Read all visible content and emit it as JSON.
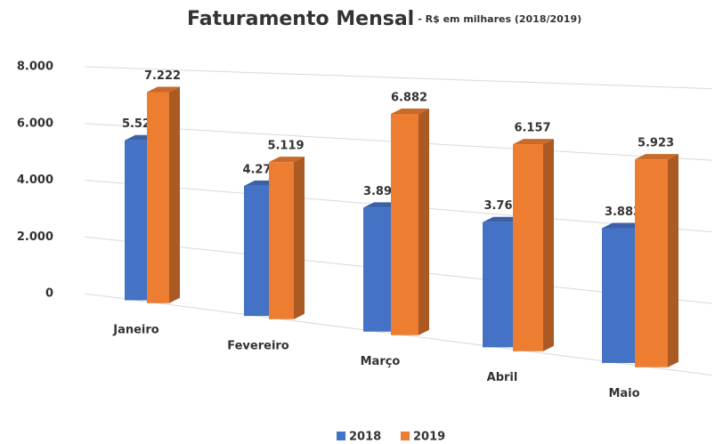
{
  "chart_data": {
    "type": "bar3d",
    "title": "Faturamento Mensal",
    "subtitle": "- R$ em milhares (2018/2019)",
    "categories": [
      "Janeiro",
      "Fevereiro",
      "Março",
      "Abril",
      "Maio"
    ],
    "series": [
      {
        "name": "2018",
        "color": "#4472c4",
        "values": [
          5522,
          4278,
          3893,
          3761,
          3883
        ],
        "value_labels": [
          "5.522",
          "4.278",
          "3.893",
          "3.761",
          "3.883"
        ]
      },
      {
        "name": "2019",
        "color": "#ed7d31",
        "values": [
          7222,
          5119,
          6882,
          6157,
          5923
        ],
        "value_labels": [
          "7.222",
          "5.119",
          "6.882",
          "6.157",
          "5.923"
        ]
      }
    ],
    "ylim": [
      0,
      8000
    ],
    "yticks": [
      {
        "value": 0,
        "label": "0"
      },
      {
        "value": 2000,
        "label": "2.000"
      },
      {
        "value": 4000,
        "label": "4.000"
      },
      {
        "value": 6000,
        "label": "6.000"
      },
      {
        "value": 8000,
        "label": "8.000"
      }
    ],
    "grid": true,
    "legend": "bottom"
  }
}
